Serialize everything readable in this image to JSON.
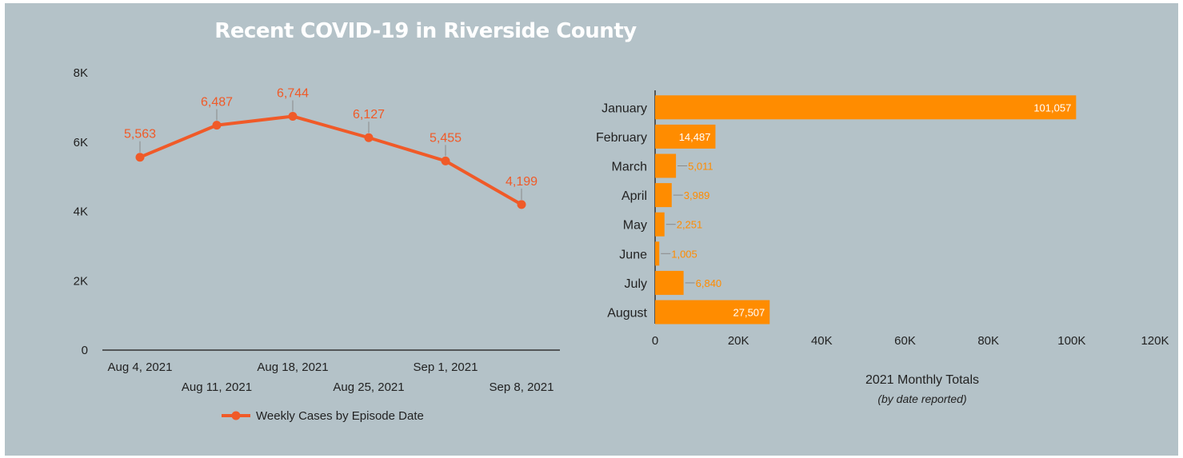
{
  "page": {
    "title": "Recent COVID-19 in Riverside County"
  },
  "colors": {
    "background": "#b4c2c8",
    "line": "#f05a28",
    "bar": "#ff8c00",
    "axis": "#333333",
    "text": "#222222",
    "title": "#ffffff"
  },
  "chart_data": [
    {
      "type": "line",
      "title": "",
      "x": [
        "Aug 4, 2021",
        "Aug 11, 2021",
        "Aug 18, 2021",
        "Aug 25, 2021",
        "Sep 1, 2021",
        "Sep 8, 2021"
      ],
      "series": [
        {
          "name": "Weekly Cases by Episode Date",
          "values": [
            5563,
            6487,
            6744,
            6127,
            5455,
            4199
          ]
        }
      ],
      "data_labels": [
        "5,563",
        "6,487",
        "6,744",
        "6,127",
        "5,455",
        "4,199"
      ],
      "ylim": [
        0,
        8000
      ],
      "y_ticks": [
        0,
        2000,
        4000,
        6000,
        8000
      ],
      "y_tick_labels": [
        "0",
        "2K",
        "4K",
        "6K",
        "8K"
      ],
      "grid": false,
      "legend": "bottom"
    },
    {
      "type": "bar",
      "orientation": "horizontal",
      "categories": [
        "January",
        "February",
        "March",
        "April",
        "May",
        "June",
        "July",
        "August"
      ],
      "values": [
        101057,
        14487,
        5011,
        3989,
        2251,
        1005,
        6840,
        27507
      ],
      "data_labels": [
        "101,057",
        "14,487",
        "5,011",
        "3,989",
        "2,251",
        "1,005",
        "6,840",
        "27,507"
      ],
      "xlim": [
        0,
        120000
      ],
      "x_ticks": [
        0,
        20000,
        40000,
        60000,
        80000,
        100000,
        120000
      ],
      "x_tick_labels": [
        "0",
        "20K",
        "40K",
        "60K",
        "80K",
        "100K",
        "120K"
      ],
      "xlabel": "2021 Monthly Totals",
      "xlabel_sub": "(by date reported)",
      "grid": false
    }
  ]
}
